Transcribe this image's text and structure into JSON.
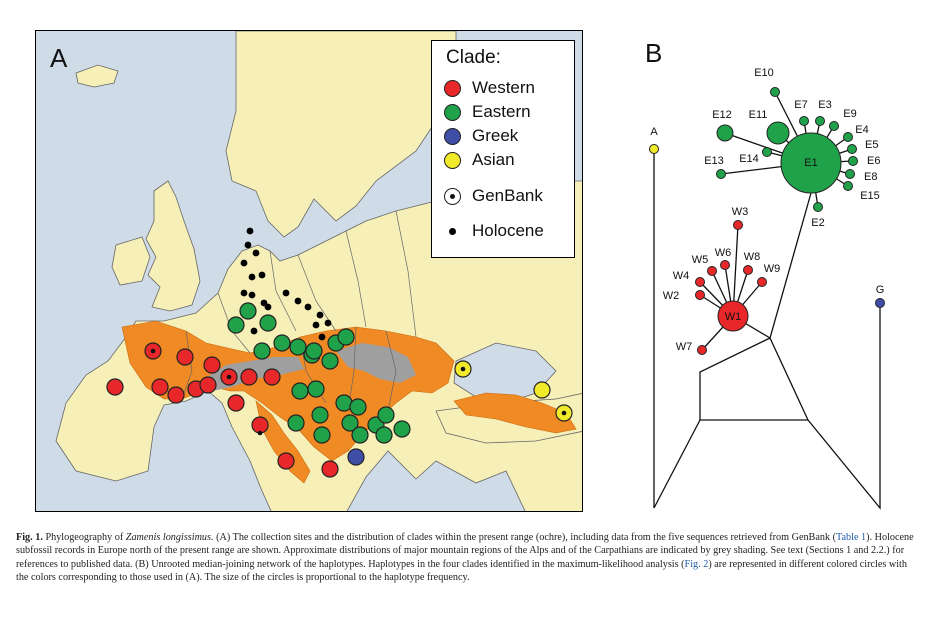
{
  "figure": {
    "panel_a_label": "A",
    "panel_b_label": "B"
  },
  "legend": {
    "title": "Clade:",
    "items": [
      {
        "label": "Western",
        "color": "#e8272a",
        "kind": "clade"
      },
      {
        "label": "Eastern",
        "color": "#1fa24a",
        "kind": "clade"
      },
      {
        "label": "Greek",
        "color": "#3f4fa8",
        "kind": "clade"
      },
      {
        "label": "Asian",
        "color": "#f1ea2a",
        "kind": "clade"
      },
      {
        "label": "GenBank",
        "color": "#ffffff",
        "kind": "genbank"
      },
      {
        "label": "Holocene",
        "color": "#000000",
        "kind": "holocene"
      }
    ]
  },
  "colors": {
    "sea": "#cfdbe6",
    "land": "#f6f0b8",
    "range": "#f08a24",
    "mountains": "#9f9f9f",
    "western": "#e8272a",
    "eastern": "#1fa24a",
    "greek": "#3f4fa8",
    "asian": "#f1ea2a"
  },
  "network": {
    "nodes": [
      {
        "id": "E1",
        "label": "E1",
        "clade": "eastern"
      },
      {
        "id": "E2",
        "label": "E2",
        "clade": "eastern"
      },
      {
        "id": "E3",
        "label": "E3",
        "clade": "eastern"
      },
      {
        "id": "E4",
        "label": "E4",
        "clade": "eastern"
      },
      {
        "id": "E5",
        "label": "E5",
        "clade": "eastern"
      },
      {
        "id": "E6",
        "label": "E6",
        "clade": "eastern"
      },
      {
        "id": "E7",
        "label": "E7",
        "clade": "eastern"
      },
      {
        "id": "E8",
        "label": "E8",
        "clade": "eastern"
      },
      {
        "id": "E9",
        "label": "E9",
        "clade": "eastern"
      },
      {
        "id": "E10",
        "label": "E10",
        "clade": "eastern"
      },
      {
        "id": "E11",
        "label": "E11",
        "clade": "eastern"
      },
      {
        "id": "E12",
        "label": "E12",
        "clade": "eastern"
      },
      {
        "id": "E13",
        "label": "E13",
        "clade": "eastern"
      },
      {
        "id": "E14",
        "label": "E14",
        "clade": "eastern"
      },
      {
        "id": "E15",
        "label": "E15",
        "clade": "eastern"
      },
      {
        "id": "W1",
        "label": "W1",
        "clade": "western"
      },
      {
        "id": "W2",
        "label": "W2",
        "clade": "western"
      },
      {
        "id": "W3",
        "label": "W3",
        "clade": "western"
      },
      {
        "id": "W4",
        "label": "W4",
        "clade": "western"
      },
      {
        "id": "W5",
        "label": "W5",
        "clade": "western"
      },
      {
        "id": "W6",
        "label": "W6",
        "clade": "western"
      },
      {
        "id": "W7",
        "label": "W7",
        "clade": "western"
      },
      {
        "id": "W8",
        "label": "W8",
        "clade": "western"
      },
      {
        "id": "W9",
        "label": "W9",
        "clade": "western"
      },
      {
        "id": "A",
        "label": "A",
        "clade": "asian"
      },
      {
        "id": "G",
        "label": "G",
        "clade": "greek"
      }
    ]
  },
  "caption": {
    "fig_label": "Fig. 1.",
    "species_lead": "Phylogeography of",
    "species": "Zamenis longissimus.",
    "p1": "(A) The collection sites and the distribution of clades within the present range (ochre), including data from the five sequences retrieved from GenBank (",
    "ref_table1": "Table 1",
    "p2": "). Holocene subfossil records in Europe north of the present range are shown. Approximate distributions of major mountain regions of the Alps and of the Carpathians are indicated by grey shading. See text (Sections 1 and 2.2.) for references to published data. (B) Unrooted median-joining network of the haplotypes. Haplotypes in the four clades identified in the maximum-likelihood analysis (",
    "ref_fig2": "Fig. 2",
    "p3": ") are represented in different colored circles with the colors corresponding to those used in (A). The size of the circles is proportional to the haplotype frequency."
  }
}
